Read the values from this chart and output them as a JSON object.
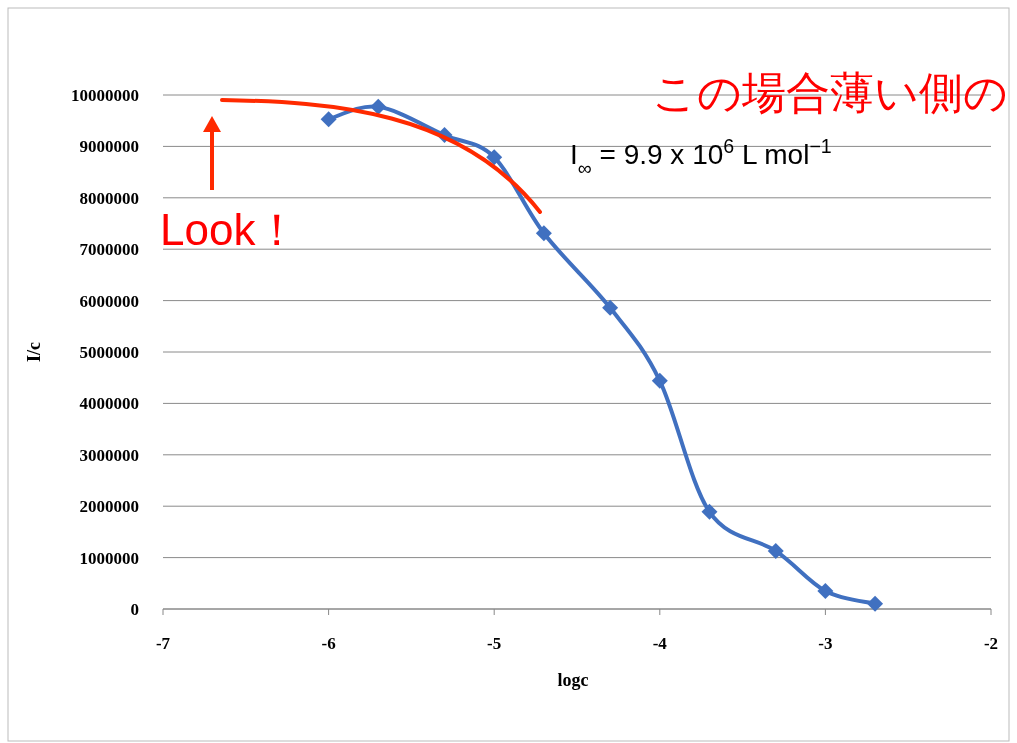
{
  "chart_data": {
    "type": "line",
    "xlabel": "logc",
    "ylabel": "I/c",
    "x": [
      -6,
      -5.7,
      -5.3,
      -5,
      -4.7,
      -4.3,
      -4,
      -3.7,
      -3.3,
      -3,
      -2.7
    ],
    "series": [
      {
        "color": "#4070c0",
        "values": [
          9530000,
          9770000,
          9220000,
          8790000,
          7310000,
          5860000,
          4440000,
          1890000,
          1130000,
          350000,
          100000
        ]
      }
    ],
    "xlim": [
      -7,
      -2
    ],
    "xticks": [
      -7,
      -6,
      -5,
      -4,
      -3,
      -2
    ],
    "ylim": [
      0,
      10000000
    ],
    "yticks": [
      0,
      1000000,
      2000000,
      3000000,
      4000000,
      5000000,
      6000000,
      7000000,
      8000000,
      9000000,
      10000000
    ],
    "grid": "y",
    "marker": "diamond",
    "line_style": "solid",
    "annotations": [
      "この場合薄い側の",
      "I$_{∞}$ = 9.9 x 10$^{6}$ L mol$^{−1}$",
      "Look！"
    ]
  }
}
